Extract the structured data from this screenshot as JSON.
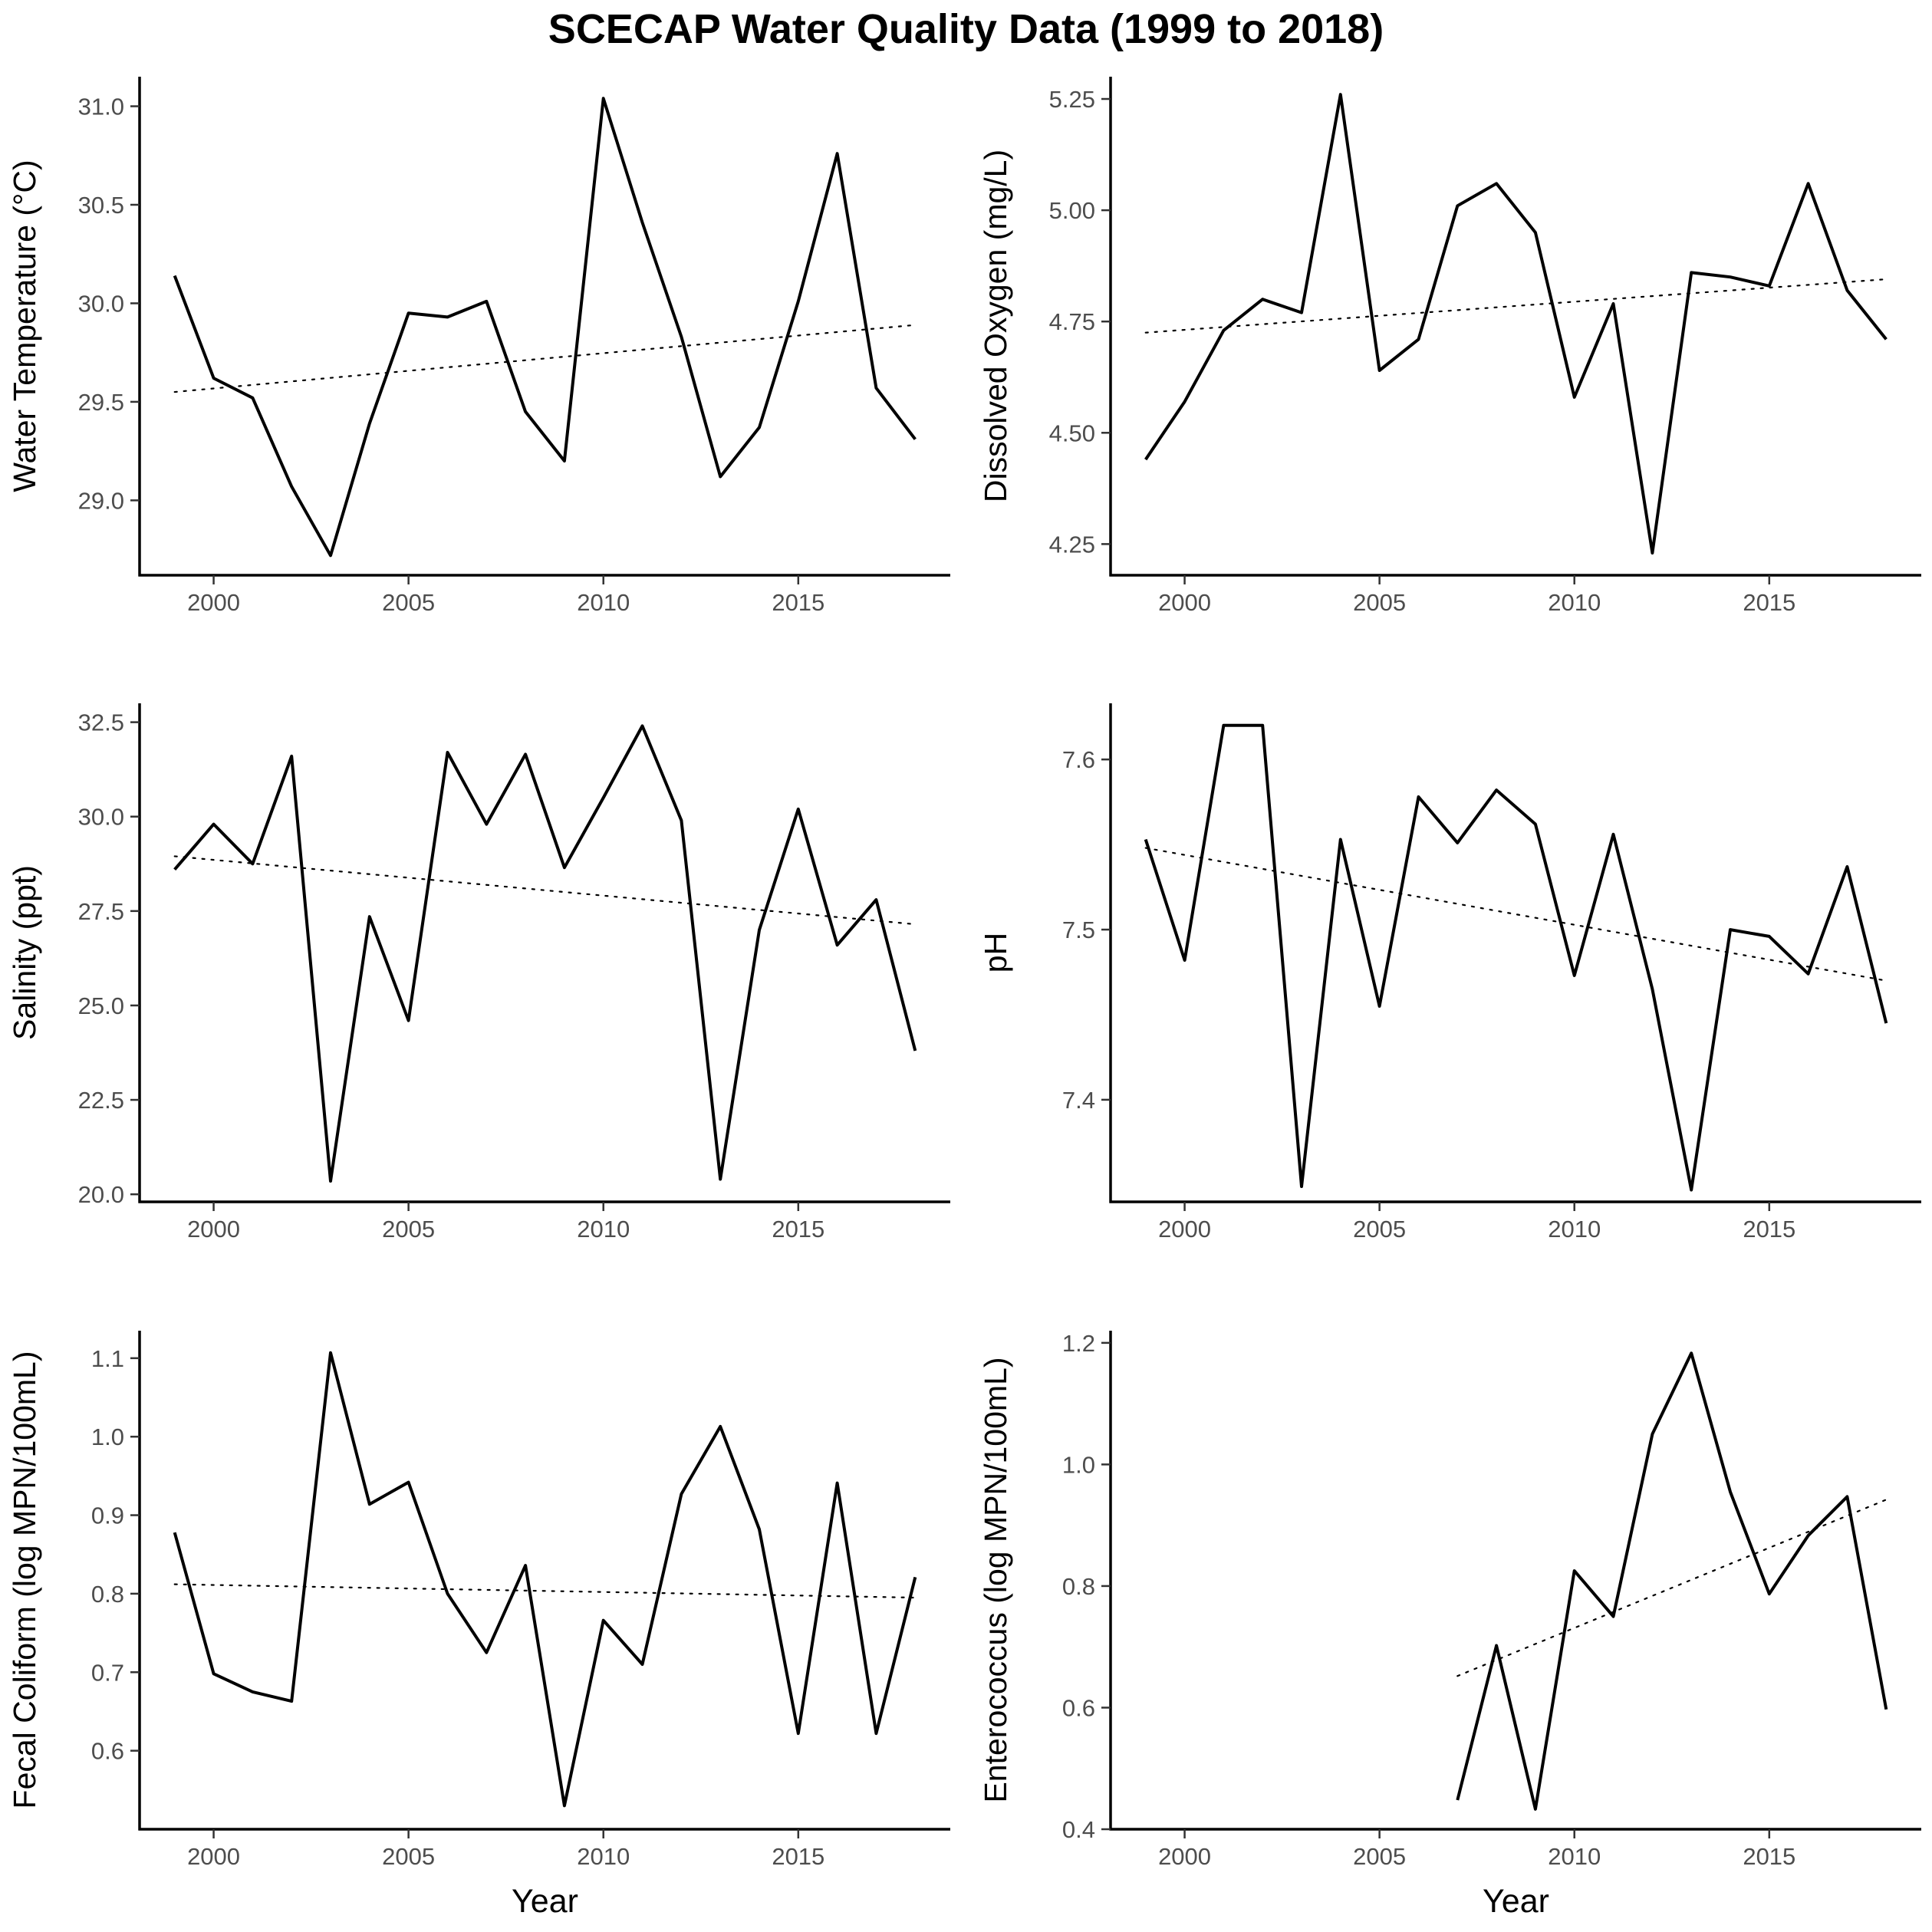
{
  "title": "SCECAP Water Quality Data (1999 to 2018)",
  "chart_data": [
    {
      "type": "line",
      "ylabel": "Water Temperature (°C)",
      "xlabel": "",
      "xlim": [
        1998.1,
        2018.9
      ],
      "ylim": [
        28.62,
        31.15
      ],
      "xticks": [
        2000,
        2005,
        2010,
        2015
      ],
      "yticks": [
        29.0,
        29.5,
        30.0,
        30.5,
        31.0
      ],
      "ytick_labels": [
        "29.0",
        "29.5",
        "30.0",
        "30.5",
        "31.0"
      ],
      "series": [
        {
          "x": [
            1999,
            2000,
            2001,
            2002,
            2003,
            2004,
            2005,
            2006,
            2007,
            2008,
            2009,
            2010,
            2011,
            2012,
            2013,
            2014,
            2015,
            2016,
            2017,
            2018
          ],
          "y": [
            30.14,
            29.62,
            29.52,
            29.07,
            28.72,
            29.39,
            29.95,
            29.93,
            30.01,
            29.45,
            29.2,
            31.04,
            30.41,
            29.83,
            29.12,
            29.37,
            30.01,
            30.76,
            29.57,
            29.31
          ]
        }
      ],
      "trend": {
        "x": [
          1999,
          2018
        ],
        "y": [
          29.55,
          29.89
        ]
      }
    },
    {
      "type": "line",
      "ylabel": "Dissolved Oxygen (mg/L)",
      "xlabel": "",
      "xlim": [
        1998.1,
        2018.9
      ],
      "ylim": [
        4.18,
        5.3
      ],
      "xticks": [
        2000,
        2005,
        2010,
        2015
      ],
      "yticks": [
        4.25,
        4.5,
        4.75,
        5.0,
        5.25
      ],
      "ytick_labels": [
        "4.25",
        "4.50",
        "4.75",
        "5.00",
        "5.25"
      ],
      "series": [
        {
          "x": [
            1999,
            2000,
            2001,
            2002,
            2003,
            2004,
            2005,
            2006,
            2007,
            2008,
            2009,
            2010,
            2011,
            2012,
            2013,
            2014,
            2015,
            2016,
            2017,
            2018
          ],
          "y": [
            4.44,
            4.57,
            4.73,
            4.8,
            4.77,
            5.26,
            4.64,
            4.71,
            5.01,
            5.06,
            4.95,
            4.58,
            4.79,
            4.23,
            4.86,
            4.85,
            4.83,
            5.06,
            4.82,
            4.71
          ]
        }
      ],
      "trend": {
        "x": [
          1999,
          2018
        ],
        "y": [
          4.725,
          4.845
        ]
      }
    },
    {
      "type": "line",
      "ylabel": "Salinity (ppt)",
      "xlabel": "",
      "xlim": [
        1998.1,
        2018.9
      ],
      "ylim": [
        19.8,
        33.0
      ],
      "xticks": [
        2000,
        2005,
        2010,
        2015
      ],
      "yticks": [
        20.0,
        22.5,
        25.0,
        27.5,
        30.0,
        32.5
      ],
      "ytick_labels": [
        "20.0",
        "22.5",
        "25.0",
        "27.5",
        "30.0",
        "32.5"
      ],
      "series": [
        {
          "x": [
            1999,
            2000,
            2001,
            2002,
            2003,
            2004,
            2005,
            2006,
            2007,
            2008,
            2009,
            2010,
            2011,
            2012,
            2013,
            2014,
            2015,
            2016,
            2017,
            2018
          ],
          "y": [
            28.6,
            29.8,
            28.75,
            31.6,
            20.35,
            27.35,
            24.6,
            31.7,
            29.8,
            31.65,
            28.65,
            30.5,
            32.4,
            29.9,
            20.4,
            27.0,
            30.2,
            26.6,
            27.8,
            23.8
          ]
        }
      ],
      "trend": {
        "x": [
          1999,
          2018
        ],
        "y": [
          28.95,
          27.15
        ]
      }
    },
    {
      "type": "line",
      "ylabel": "pH",
      "xlabel": "",
      "xlim": [
        1998.1,
        2018.9
      ],
      "ylim": [
        7.34,
        7.633
      ],
      "xticks": [
        2000,
        2005,
        2010,
        2015
      ],
      "yticks": [
        7.4,
        7.5,
        7.6
      ],
      "ytick_labels": [
        "7.4",
        "7.5",
        "7.6"
      ],
      "series": [
        {
          "x": [
            1999,
            2000,
            2001,
            2002,
            2003,
            2004,
            2005,
            2006,
            2007,
            2008,
            2009,
            2010,
            2011,
            2012,
            2013,
            2014,
            2015,
            2016,
            2017,
            2018
          ],
          "y": [
            7.553,
            7.482,
            7.62,
            7.62,
            7.349,
            7.553,
            7.455,
            7.578,
            7.551,
            7.582,
            7.562,
            7.473,
            7.556,
            7.465,
            7.347,
            7.5,
            7.496,
            7.474,
            7.537,
            7.445
          ]
        }
      ],
      "trend": {
        "x": [
          1999,
          2018
        ],
        "y": [
          7.548,
          7.47
        ]
      }
    },
    {
      "type": "line",
      "ylabel": "Fecal Coliform (log MPN/100mL)",
      "xlabel": "Year",
      "xlim": [
        1998.1,
        2018.9
      ],
      "ylim": [
        0.5,
        1.135
      ],
      "xticks": [
        2000,
        2005,
        2010,
        2015
      ],
      "yticks": [
        0.6,
        0.7,
        0.8,
        0.9,
        1.0,
        1.1
      ],
      "ytick_labels": [
        "0.6",
        "0.7",
        "0.8",
        "0.9",
        "1.0",
        "1.1"
      ],
      "series": [
        {
          "x": [
            1999,
            2000,
            2001,
            2002,
            2003,
            2004,
            2005,
            2006,
            2007,
            2008,
            2009,
            2010,
            2011,
            2012,
            2013,
            2014,
            2015,
            2016,
            2017,
            2018
          ],
          "y": [
            0.878,
            0.698,
            0.675,
            0.663,
            1.107,
            0.914,
            0.942,
            0.8,
            0.725,
            0.836,
            0.53,
            0.766,
            0.71,
            0.927,
            1.013,
            0.882,
            0.622,
            0.941,
            0.622,
            0.821
          ]
        }
      ],
      "trend": {
        "x": [
          1999,
          2018
        ],
        "y": [
          0.812,
          0.795
        ]
      }
    },
    {
      "type": "line",
      "ylabel": "Enterococcus (log MPN/100mL)",
      "xlabel": "Year",
      "xlim": [
        1998.1,
        2018.9
      ],
      "ylim": [
        0.4,
        1.22
      ],
      "xticks": [
        2000,
        2005,
        2010,
        2015
      ],
      "yticks": [
        0.4,
        0.6,
        0.8,
        1.0,
        1.2
      ],
      "ytick_labels": [
        "0.4",
        "0.6",
        "0.8",
        "1.0",
        "1.2"
      ],
      "series": [
        {
          "x": [
            2007,
            2008,
            2009,
            2010,
            2011,
            2012,
            2013,
            2014,
            2015,
            2016,
            2017,
            2018
          ],
          "y": [
            0.448,
            0.702,
            0.433,
            0.825,
            0.75,
            1.05,
            1.183,
            0.955,
            0.787,
            0.883,
            0.947,
            0.597
          ]
        }
      ],
      "trend": {
        "x": [
          2007,
          2018
        ],
        "y": [
          0.652,
          0.942
        ]
      }
    }
  ]
}
